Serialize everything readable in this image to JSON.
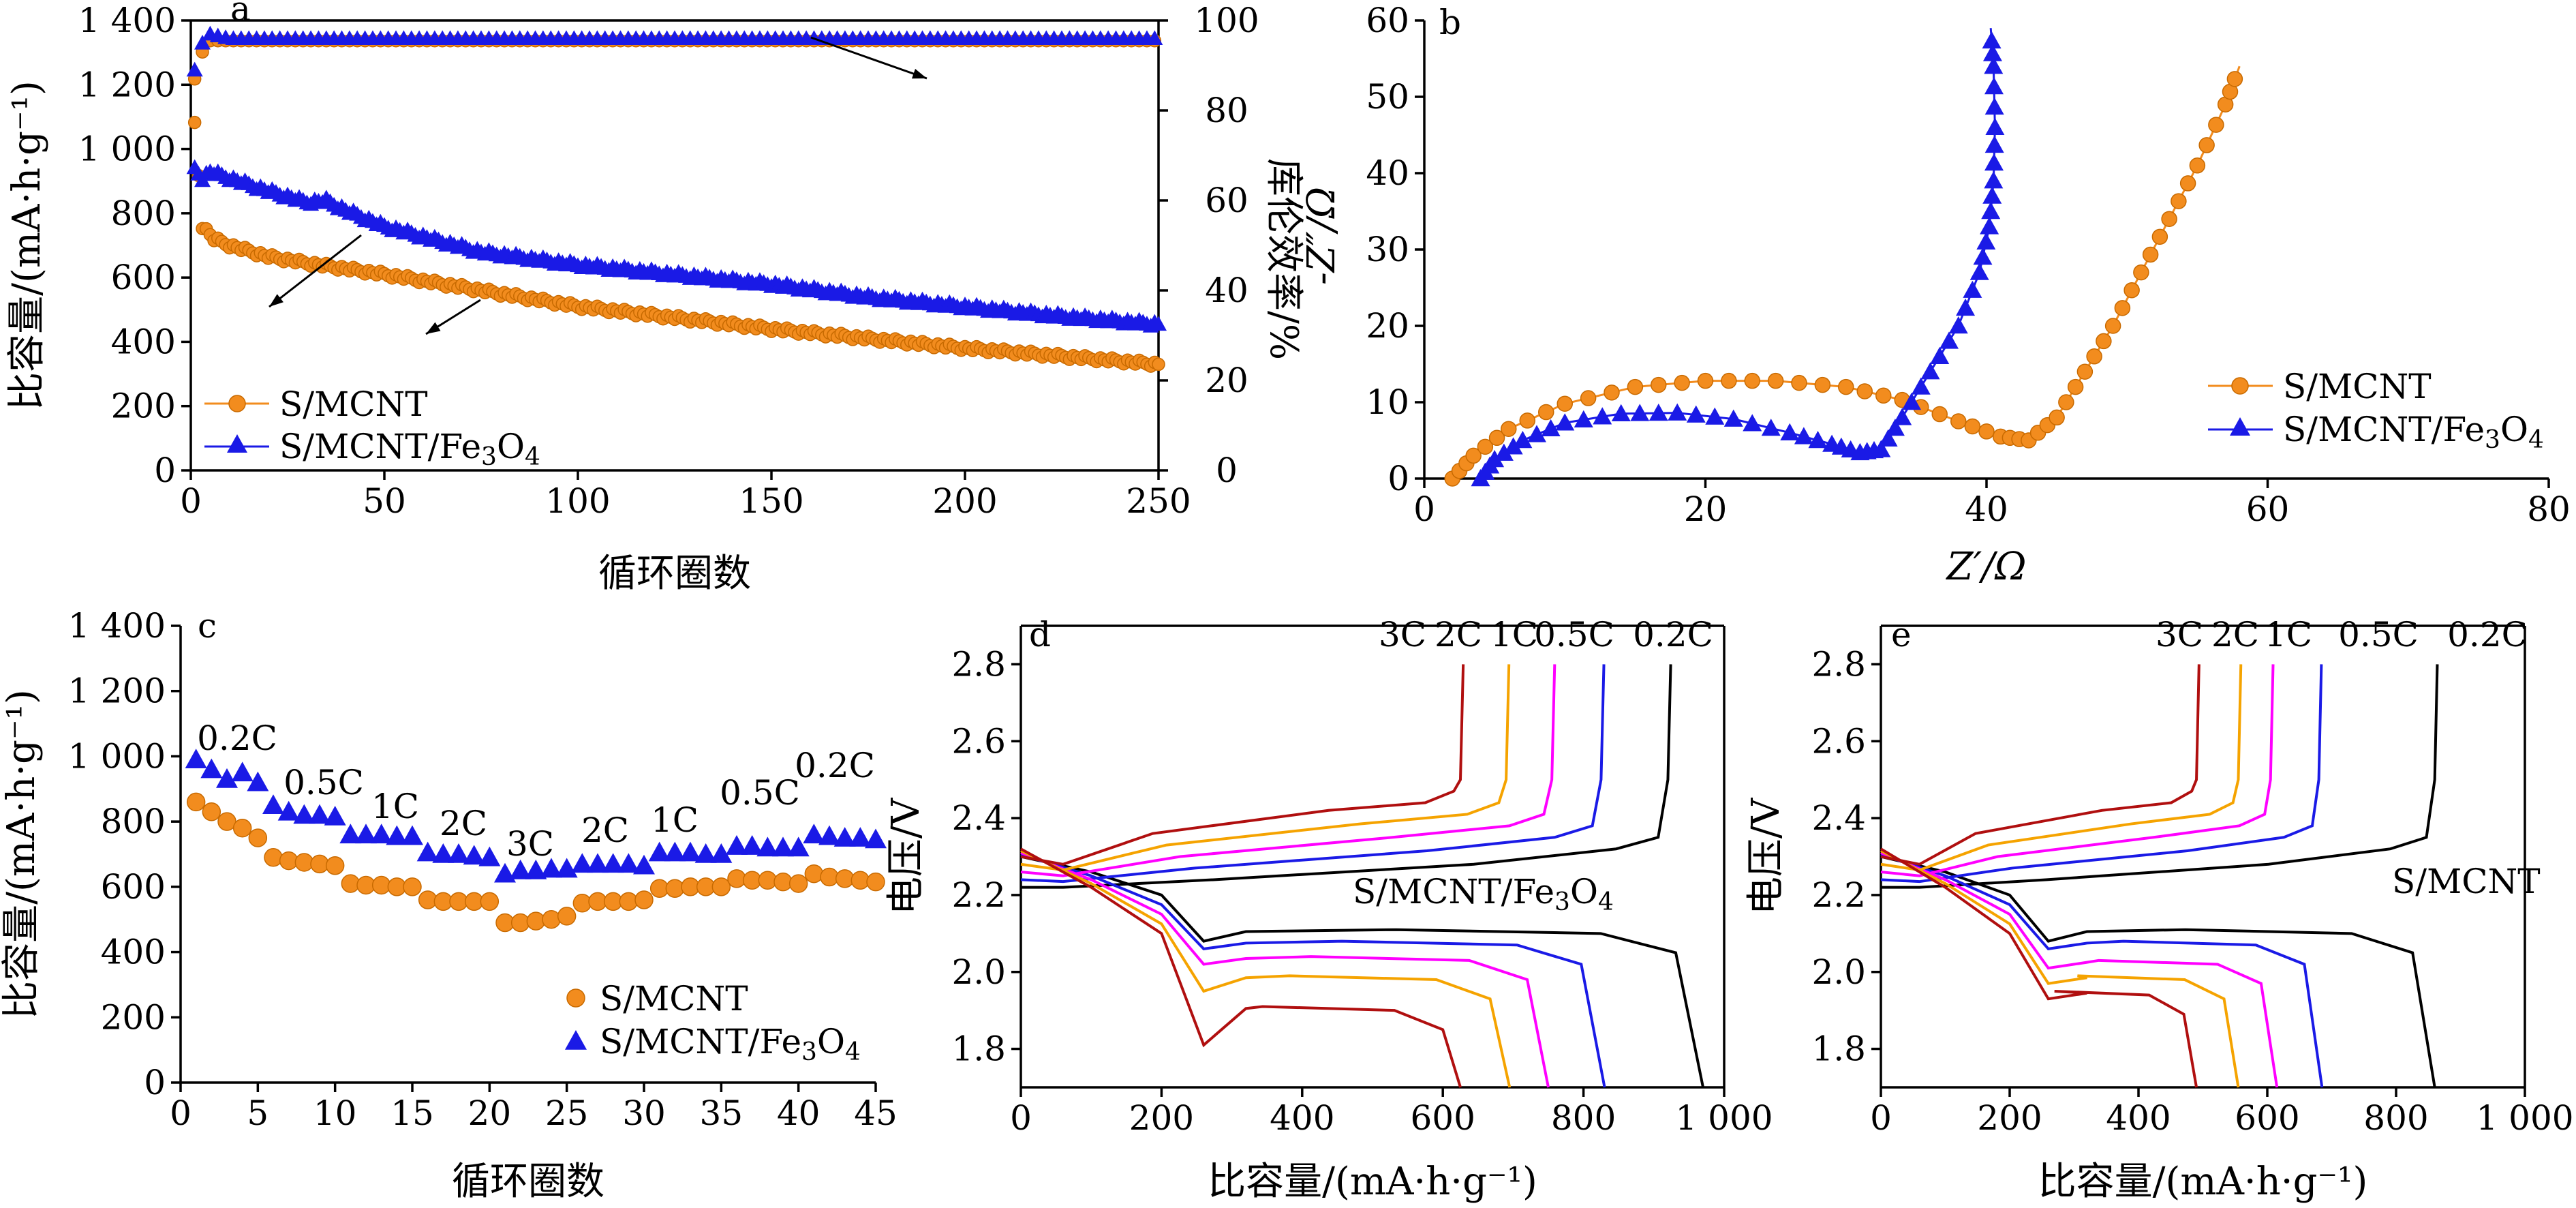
{
  "colors": {
    "s_mcnt": "#f28c1e",
    "s_mcnt_fe3o4": "#1a1ae6",
    "arrow": "#000000"
  },
  "chart_data": [
    {
      "panel": "a",
      "type": "scatter",
      "xlabel": "循环圈数",
      "ylabel": "比容量/(mA·h·g⁻¹)",
      "y2label": "库伦效率/%",
      "xlim": [
        0,
        250
      ],
      "ylim": [
        0,
        1400
      ],
      "y2lim": [
        0,
        100
      ],
      "xticks": [
        "0",
        "50",
        "100",
        "150",
        "200",
        "250"
      ],
      "yticks": [
        "0",
        "200",
        "400",
        "600",
        "800",
        "1 000",
        "1 200",
        "1 400"
      ],
      "y2ticks": [
        "0",
        "20",
        "40",
        "60",
        "80",
        "100"
      ],
      "legend": [
        "S/MCNT",
        "S/MCNT/Fe3O4"
      ],
      "series": [
        {
          "name": "S/MCNT",
          "key": "s_mcnt",
          "marker": "circle",
          "axis": "y",
          "x": [
            1,
            3,
            6,
            10,
            20,
            30,
            50,
            75,
            100,
            125,
            150,
            175,
            200,
            225,
            250
          ],
          "y": [
            1080,
            760,
            720,
            700,
            665,
            645,
            610,
            560,
            510,
            475,
            440,
            410,
            380,
            355,
            330
          ]
        },
        {
          "name": "S/MCNT/Fe3O4",
          "key": "s_mcnt_fe3o4",
          "marker": "triangle",
          "axis": "y",
          "x": [
            1,
            3,
            5,
            10,
            20,
            30,
            35,
            40,
            50,
            75,
            100,
            125,
            150,
            175,
            200,
            225,
            250
          ],
          "y": [
            940,
            910,
            930,
            910,
            870,
            835,
            840,
            810,
            760,
            680,
            640,
            610,
            580,
            540,
            510,
            480,
            455
          ]
        },
        {
          "name": "S/MCNT coulombic efficiency",
          "key": "s_mcnt",
          "marker": "circle",
          "axis": "y2",
          "x": [
            1,
            3,
            5,
            10,
            50,
            100,
            150,
            200,
            250
          ],
          "y": [
            87,
            93,
            95.5,
            95.5,
            95.5,
            95.5,
            95.5,
            95.5,
            95.5
          ]
        },
        {
          "name": "S/MCNT/Fe3O4 coulombic efficiency",
          "key": "s_mcnt_fe3o4",
          "marker": "triangle",
          "axis": "y2",
          "x": [
            1,
            3,
            5,
            10,
            50,
            100,
            150,
            200,
            250
          ],
          "y": [
            89,
            95,
            97,
            96,
            96,
            96,
            96,
            96,
            96
          ]
        }
      ]
    },
    {
      "panel": "b",
      "type": "scatter",
      "xlabel": "Z′/Ω",
      "ylabel": "-Z″/Ω",
      "xlim": [
        0,
        80
      ],
      "ylim": [
        0,
        60
      ],
      "xticks": [
        "0",
        "20",
        "40",
        "60",
        "80"
      ],
      "yticks": [
        "0",
        "10",
        "20",
        "30",
        "40",
        "50",
        "60"
      ],
      "legend": [
        "S/MCNT",
        "S/MCNT/Fe3O4"
      ],
      "series": [
        {
          "name": "S/MCNT",
          "key": "s_mcnt",
          "marker": "circle",
          "x": [
            2.0,
            3.5,
            6,
            10,
            15,
            20,
            25,
            30,
            34,
            38,
            41,
            43,
            45,
            47,
            49,
            51,
            53,
            55,
            57,
            58
          ],
          "y": [
            0,
            3.0,
            6.5,
            9.8,
            12.0,
            12.8,
            12.8,
            12.0,
            10.3,
            7.5,
            5.5,
            5.0,
            8.0,
            14,
            20,
            27,
            34,
            41,
            49,
            54
          ]
        },
        {
          "name": "S/MCNT/Fe3O4",
          "key": "s_mcnt_fe3o4",
          "marker": "triangle",
          "x": [
            4.0,
            5,
            7,
            10,
            14,
            18,
            22,
            26,
            29,
            31,
            32.5,
            34,
            36,
            38,
            39.5,
            40.2,
            40.5,
            40.6,
            40.5,
            40.3
          ],
          "y": [
            0,
            2.5,
            5,
            7.3,
            8.5,
            8.6,
            7.8,
            6.0,
            4.5,
            3.4,
            3.8,
            8.0,
            14,
            20,
            27,
            33,
            39,
            46,
            54,
            59
          ]
        }
      ]
    },
    {
      "panel": "c",
      "type": "scatter",
      "xlabel": "循环圈数",
      "ylabel": "比容量/(mA·h·g⁻¹)",
      "xlim": [
        0,
        45
      ],
      "ylim": [
        0,
        1400
      ],
      "xticks": [
        "0",
        "5",
        "10",
        "15",
        "20",
        "25",
        "30",
        "35",
        "40",
        "45"
      ],
      "yticks": [
        "0",
        "200",
        "400",
        "600",
        "800",
        "1 000",
        "1 200",
        "1 400"
      ],
      "legend": [
        "S/MCNT",
        "S/MCNT/Fe3O4"
      ],
      "rate_labels": [
        "0.2C",
        "0.5C",
        "1C",
        "2C",
        "3C",
        "2C",
        "1C",
        "0.5C",
        "0.2C"
      ],
      "series": [
        {
          "name": "S/MCNT",
          "key": "s_mcnt",
          "marker": "circle",
          "x": [
            1,
            2,
            3,
            4,
            5,
            6,
            7,
            8,
            9,
            10,
            11,
            12,
            13,
            14,
            15,
            16,
            17,
            18,
            19,
            20,
            21,
            22,
            23,
            24,
            25,
            26,
            27,
            28,
            29,
            30,
            31,
            32,
            33,
            34,
            35,
            36,
            37,
            38,
            39,
            40,
            41,
            42,
            43,
            44,
            45
          ],
          "y": [
            860,
            830,
            800,
            780,
            750,
            690,
            680,
            675,
            670,
            665,
            610,
            605,
            605,
            600,
            600,
            560,
            555,
            555,
            555,
            555,
            490,
            490,
            495,
            500,
            510,
            550,
            555,
            555,
            555,
            560,
            595,
            595,
            600,
            600,
            600,
            625,
            620,
            620,
            615,
            610,
            640,
            630,
            625,
            620,
            615
          ]
        },
        {
          "name": "S/MCNT/Fe3O4",
          "key": "s_mcnt_fe3o4",
          "marker": "triangle",
          "x": [
            1,
            2,
            3,
            4,
            5,
            6,
            7,
            8,
            9,
            10,
            11,
            12,
            13,
            14,
            15,
            16,
            17,
            18,
            19,
            20,
            21,
            22,
            23,
            24,
            25,
            26,
            27,
            28,
            29,
            30,
            31,
            32,
            33,
            34,
            35,
            36,
            37,
            38,
            39,
            40,
            41,
            42,
            43,
            44,
            45
          ],
          "y": [
            990,
            960,
            930,
            950,
            920,
            850,
            830,
            820,
            820,
            815,
            760,
            760,
            760,
            755,
            755,
            705,
            700,
            700,
            695,
            690,
            640,
            650,
            650,
            655,
            655,
            670,
            670,
            670,
            670,
            665,
            705,
            705,
            705,
            700,
            700,
            725,
            725,
            720,
            720,
            720,
            760,
            755,
            750,
            750,
            745
          ]
        }
      ]
    },
    {
      "panel": "d",
      "type": "line",
      "xlabel": "比容量/(mA·h·g⁻¹)",
      "ylabel": "电压/V",
      "xlim": [
        0,
        1000
      ],
      "ylim": [
        1.7,
        2.9
      ],
      "xticks": [
        "0",
        "200",
        "400",
        "600",
        "800",
        "1 000"
      ],
      "yticks": [
        "1.8",
        "2.0",
        "2.2",
        "2.4",
        "2.6",
        "2.8"
      ],
      "annotation": "S/MCNT/Fe3O4",
      "series": [
        {
          "name": "0.2C",
          "color": "#000000",
          "charge_end": 920,
          "discharge_end": 970,
          "plateau": 2.11,
          "dip": 2.08
        },
        {
          "name": "0.5C",
          "color": "#1a1ae6",
          "charge_end": 825,
          "discharge_end": 830,
          "plateau": 2.08,
          "dip": 2.06
        },
        {
          "name": "1C",
          "color": "#ff00ff",
          "charge_end": 755,
          "discharge_end": 750,
          "plateau": 2.04,
          "dip": 2.02
        },
        {
          "name": "2C",
          "color": "#f5a300",
          "charge_end": 690,
          "discharge_end": 695,
          "plateau": 1.99,
          "dip": 1.95
        },
        {
          "name": "3C",
          "color": "#b00f0f",
          "charge_end": 625,
          "discharge_end": 625,
          "plateau": 1.91,
          "dip": 1.81
        }
      ]
    },
    {
      "panel": "e",
      "type": "line",
      "xlabel": "比容量/(mA·h·g⁻¹)",
      "ylabel": "电压/V",
      "xlim": [
        0,
        1000
      ],
      "ylim": [
        1.7,
        2.9
      ],
      "xticks": [
        "0",
        "200",
        "400",
        "600",
        "800",
        "1 000"
      ],
      "yticks": [
        "1.8",
        "2.0",
        "2.2",
        "2.4",
        "2.6",
        "2.8"
      ],
      "annotation": "S/MCNT",
      "series": [
        {
          "name": "0.2C",
          "color": "#000000",
          "charge_end": 860,
          "discharge_end": 860,
          "plateau": 2.11,
          "dip": 2.08
        },
        {
          "name": "0.5C",
          "color": "#1a1ae6",
          "charge_end": 680,
          "discharge_end": 685,
          "plateau": 2.08,
          "dip": 2.06
        },
        {
          "name": "1C",
          "color": "#ff00ff",
          "charge_end": 605,
          "discharge_end": 615,
          "plateau": 2.03,
          "dip": 2.01
        },
        {
          "name": "2C",
          "color": "#f5a300",
          "charge_end": 555,
          "discharge_end": 555,
          "plateau": 1.99,
          "dip": 1.97
        },
        {
          "name": "3C",
          "color": "#b00f0f",
          "charge_end": 490,
          "discharge_end": 490,
          "plateau": 1.95,
          "dip": 1.93
        }
      ]
    }
  ]
}
